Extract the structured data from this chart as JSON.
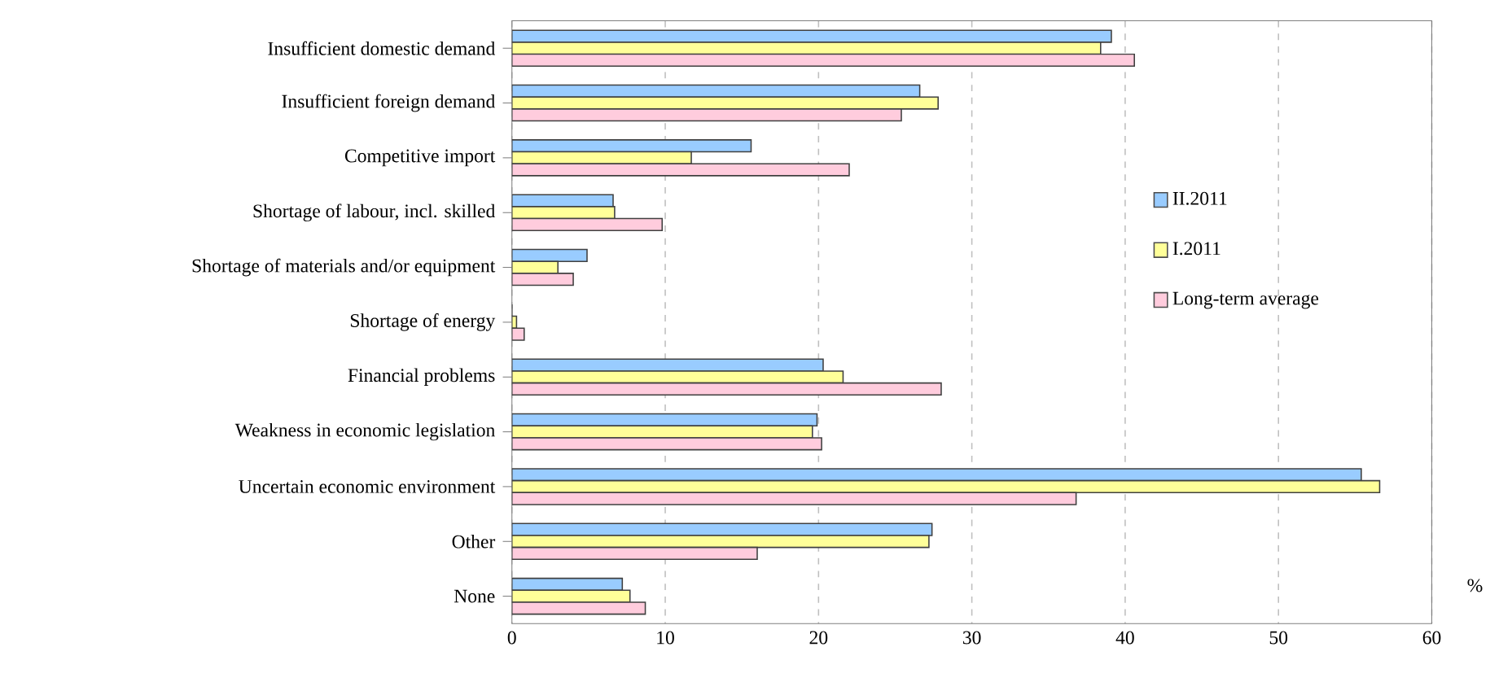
{
  "chart_data": {
    "type": "bar",
    "orientation": "horizontal",
    "categories": [
      "Insufficient domestic demand",
      "Insufficient foreign demand",
      "Competitive import",
      "Shortage of labour, incl. skilled",
      "Shortage of materials and/or equipment",
      "Shortage of energy",
      "Financial problems",
      "Weakness in economic legislation",
      "Uncertain economic environment",
      "Other",
      "None"
    ],
    "series": [
      {
        "name": "II.2011",
        "color": "#99ccff",
        "values": [
          39.1,
          26.6,
          15.6,
          6.6,
          4.9,
          0,
          20.3,
          19.9,
          55.4,
          27.4,
          7.2
        ]
      },
      {
        "name": "I.2011",
        "color": "#ffff99",
        "values": [
          38.4,
          27.8,
          11.7,
          6.7,
          3.0,
          0.3,
          21.6,
          19.6,
          56.6,
          27.2,
          7.7
        ]
      },
      {
        "name": "Long-term average",
        "color": "#ffccdd",
        "values": [
          40.6,
          25.4,
          22.0,
          9.8,
          4.0,
          0.8,
          28.0,
          20.2,
          36.8,
          16.0,
          8.7
        ]
      }
    ],
    "xlabel": "%",
    "xlim": [
      0,
      60
    ],
    "xticks": [
      0,
      10,
      20,
      30,
      40,
      50,
      60
    ],
    "grid": "x",
    "legend": "right"
  }
}
